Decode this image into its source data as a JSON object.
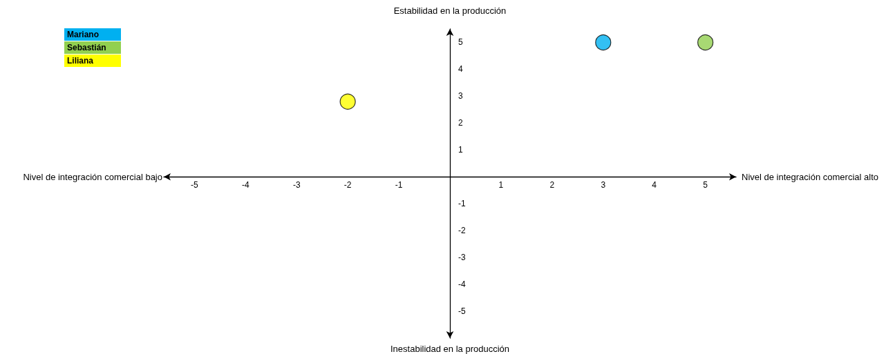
{
  "chart_data": {
    "type": "scatter",
    "xlabel": "Nivel de integración comercial alto",
    "ylabel": "Estabilidad en la producción",
    "annotations": [
      "Nivel de integración comercial bajo",
      "Inestabilidad en la producción"
    ],
    "series": [
      {
        "name": "Mariano",
        "color": "#00b0f0",
        "x": [
          3
        ],
        "values": [
          5
        ]
      },
      {
        "name": "Sebastián",
        "color": "#92d050",
        "x": [
          5
        ],
        "values": [
          5
        ]
      },
      {
        "name": "Liliana",
        "color": "#ffff00",
        "x": [
          -2
        ],
        "values": [
          2.8
        ]
      }
    ],
    "xlim": [
      -5.6,
      5.6
    ],
    "ylim": [
      -6,
      5.5
    ],
    "xticks": [
      -5,
      -4,
      -3,
      -2,
      -1,
      1,
      2,
      3,
      4,
      5
    ],
    "yticks": [
      -5,
      -4,
      -3,
      -2,
      -1,
      1,
      2,
      3,
      4,
      5
    ],
    "grid": false,
    "legend": "top left",
    "marker": "circle"
  }
}
